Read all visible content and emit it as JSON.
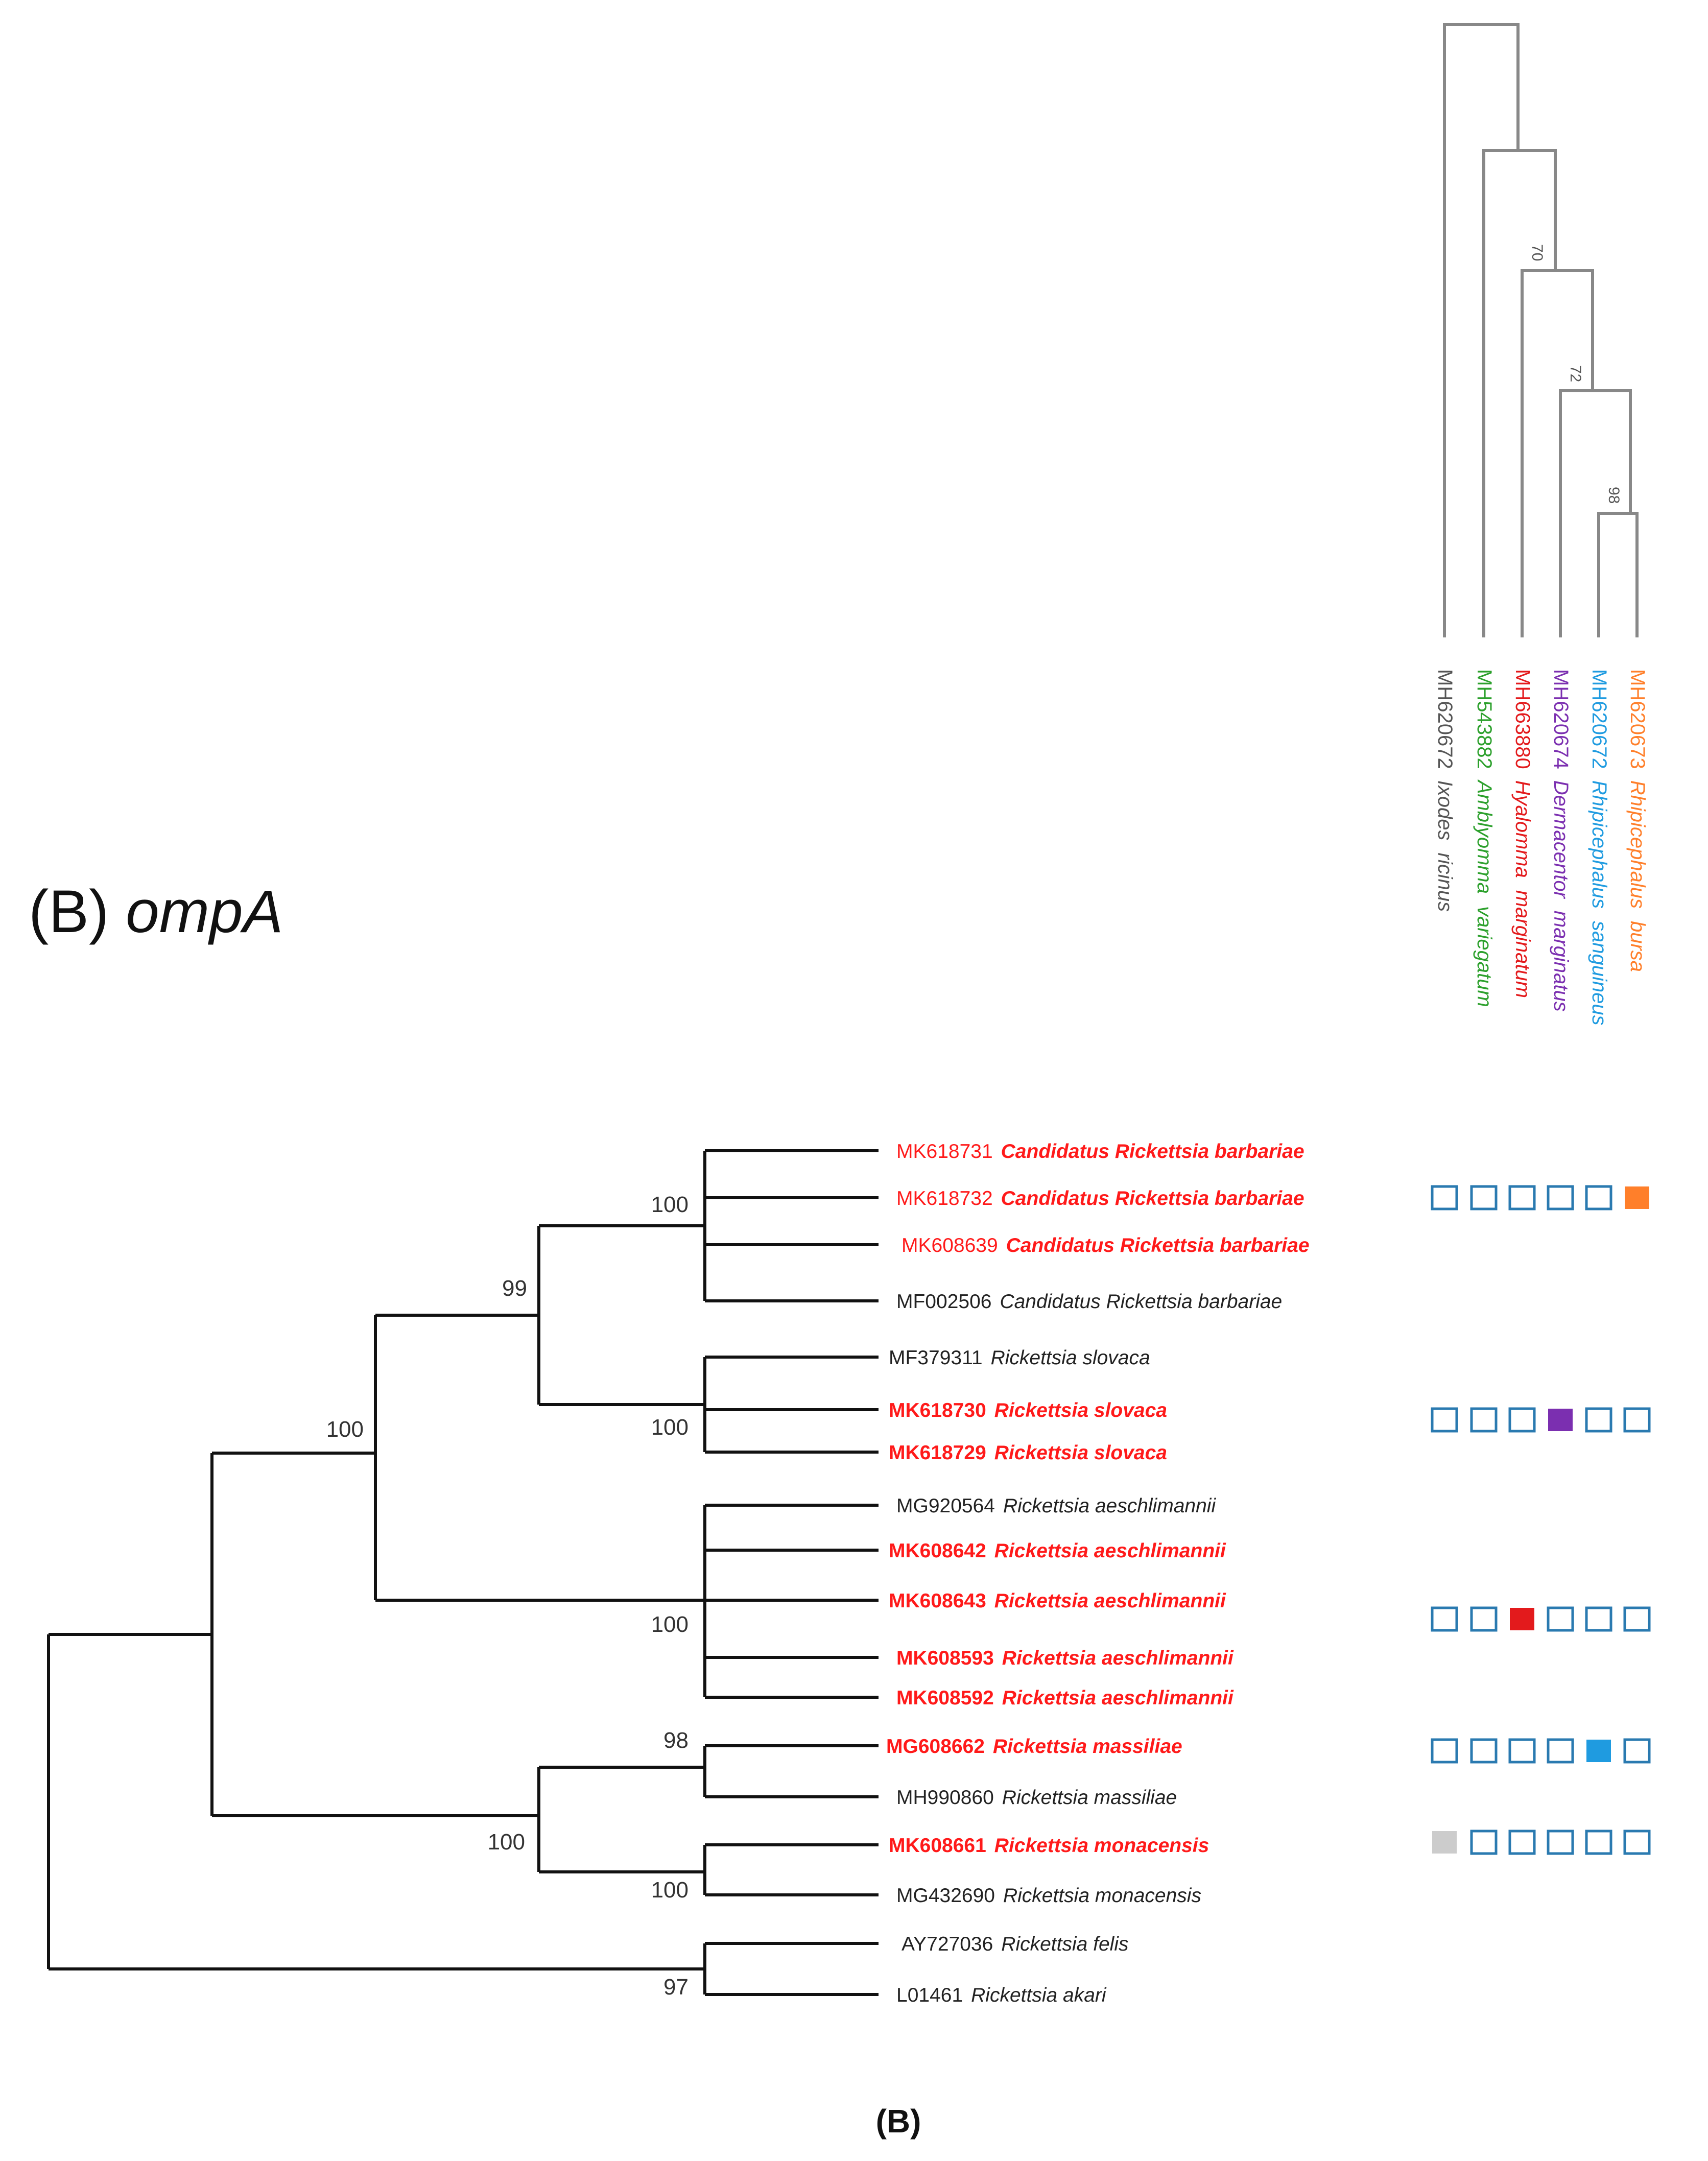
{
  "figure": {
    "title_prefix": "(B) ",
    "gene": "ompA",
    "caption": "(B)"
  },
  "host_tree": {
    "hosts": [
      {
        "accession": "MH620672",
        "genus": "Ixodes",
        "species": "ricinus",
        "color": "#555555"
      },
      {
        "accession": "MH543882",
        "genus": "Amblyomma",
        "species": "variegatum",
        "color": "#2ca02c"
      },
      {
        "accession": "MH663880",
        "genus": "Hyalomma",
        "species": "marginatum",
        "color": "#e31a1c"
      },
      {
        "accession": "MH620674",
        "genus": "Dermacentor",
        "species": "marginatus",
        "color": "#7b2fb0"
      },
      {
        "accession": "MH620672",
        "genus": "Rhipicephalus",
        "species": "sanguineus",
        "color": "#1f9be0"
      },
      {
        "accession": "MH620673",
        "genus": "Rhipicephalus",
        "species": "bursa",
        "color": "#ff7f2a"
      }
    ],
    "bootstrap": [
      "70",
      "72",
      "98"
    ],
    "line_color": "#888888"
  },
  "rickettsia_tree": {
    "taxa": [
      {
        "accession": "MK618731",
        "name": "Candidatus Rickettsia barbariae",
        "highlight": true
      },
      {
        "accession": "MK618732",
        "name": "Candidatus Rickettsia barbariae",
        "highlight": true
      },
      {
        "accession": "MK608639",
        "name": "Candidatus Rickettsia barbariae",
        "highlight": true
      },
      {
        "accession": "MF002506",
        "name": "Candidatus Rickettsia barbariae",
        "highlight": false
      },
      {
        "accession": "MF379311",
        "name": "Rickettsia slovaca",
        "highlight": false
      },
      {
        "accession": "MK618730",
        "name": "Rickettsia slovaca",
        "highlight": true
      },
      {
        "accession": "MK618729",
        "name": "Rickettsia slovaca",
        "highlight": true
      },
      {
        "accession": "MG920564",
        "name": "Rickettsia aeschlimannii",
        "highlight": false
      },
      {
        "accession": "MK608642",
        "name": "Rickettsia aeschlimannii",
        "highlight": true
      },
      {
        "accession": "MK608643",
        "name": "Rickettsia aeschlimannii",
        "highlight": true
      },
      {
        "accession": "MK608593",
        "name": "Rickettsia aeschlimannii",
        "highlight": true
      },
      {
        "accession": "MK608592",
        "name": "Rickettsia aeschlimannii",
        "highlight": true
      },
      {
        "accession": "MG608662",
        "name": "Rickettsia massiliae",
        "highlight": true
      },
      {
        "accession": "MH990860",
        "name": "Rickettsia massiliae",
        "highlight": false
      },
      {
        "accession": "MK608661",
        "name": "Rickettsia monacensis",
        "highlight": true
      },
      {
        "accession": "MG432690",
        "name": "Rickettsia monacensis",
        "highlight": false
      },
      {
        "accession": "AY727036",
        "name": "Rickettsia felis",
        "highlight": false
      },
      {
        "accession": "L01461",
        "name": "Rickettsia akari",
        "highlight": false
      }
    ],
    "bootstrap": [
      "100",
      "99",
      "100",
      "100",
      "100",
      "98",
      "100",
      "100",
      "97"
    ],
    "highlight_color": "#ff1a1a",
    "line_color": "#111111"
  },
  "association_matrix": {
    "rows": [
      {
        "clade": "Candidatus Rickettsia barbariae",
        "filled": [
          false,
          false,
          false,
          false,
          false,
          true
        ]
      },
      {
        "clade": "Rickettsia slovaca",
        "filled": [
          false,
          false,
          false,
          true,
          false,
          false
        ]
      },
      {
        "clade": "Rickettsia aeschlimannii",
        "filled": [
          false,
          false,
          true,
          false,
          false,
          false
        ]
      },
      {
        "clade": "Rickettsia massiliae",
        "filled": [
          false,
          false,
          false,
          false,
          true,
          false
        ]
      },
      {
        "clade": "Rickettsia monacensis",
        "filled": [
          true,
          false,
          false,
          false,
          false,
          false
        ]
      }
    ],
    "empty_color": "#2a7ab0",
    "first_cell_grey": "#cccccc"
  }
}
